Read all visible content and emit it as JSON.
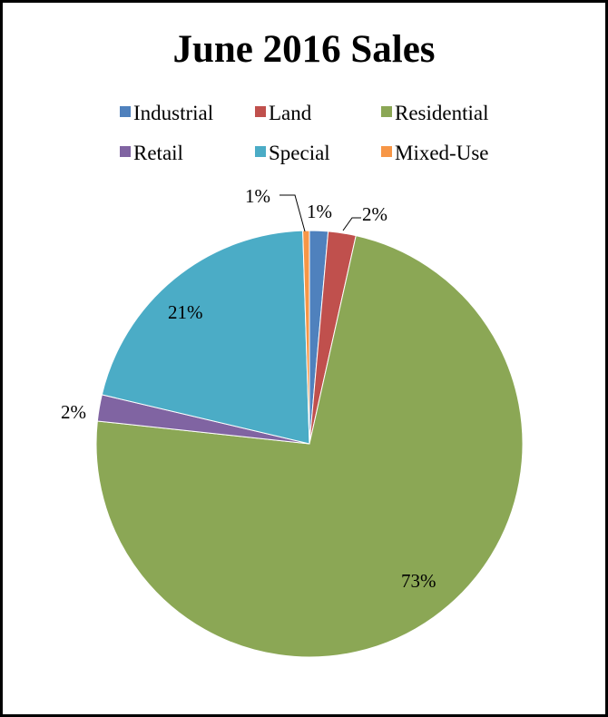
{
  "chart_data": {
    "type": "pie",
    "title": "June 2016 Sales",
    "legend_placement": "top",
    "categories": [
      "Industrial",
      "Land",
      "Residential",
      "Retail",
      "Special",
      "Mixed-Use"
    ],
    "values": [
      1.4,
      2.1,
      73.2,
      2.0,
      20.8,
      0.5
    ],
    "labels": [
      "1%",
      "2%",
      "73%",
      "2%",
      "21%",
      "1%"
    ],
    "colors": [
      "#4F81BD",
      "#C0504D",
      "#8BA755",
      "#8064A2",
      "#4BACC6",
      "#F79646"
    ]
  }
}
